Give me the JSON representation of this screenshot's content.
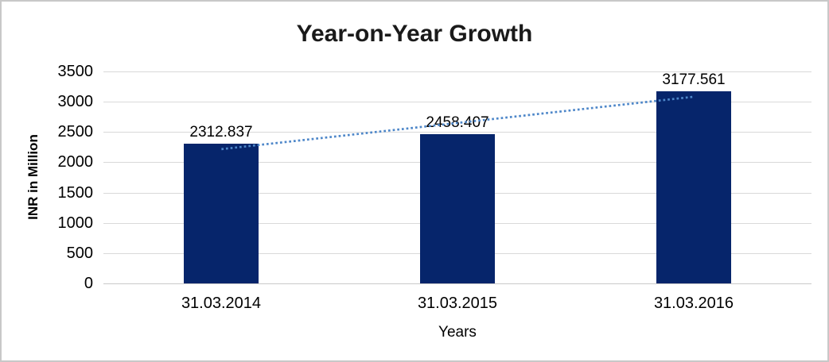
{
  "chart_data": {
    "type": "bar",
    "title": "Year-on-Year Growth",
    "categories": [
      "31.03.2014",
      "31.03.2015",
      "31.03.2016"
    ],
    "values": [
      2312.837,
      2458.407,
      3177.561
    ],
    "data_labels": [
      "2312.837",
      "2458.407",
      "3177.561"
    ],
    "xlabel": "Years",
    "ylabel": "INR in Million",
    "ylim": [
      0,
      3500
    ],
    "ytick_step": 500,
    "yticks": [
      0,
      500,
      1000,
      1500,
      2000,
      2500,
      3000,
      3500
    ],
    "grid": true,
    "legend": "none",
    "colors": {
      "bar": "#06256b",
      "trendline": "#4e87c9",
      "gridline": "#d9d9d9",
      "axis_line": "#c9c9c9",
      "text": "#000000",
      "title_text": "#1a1a1a",
      "frame_border": "#c8c8c8"
    },
    "trendline": {
      "kind": "linear",
      "style": "dotted"
    }
  }
}
